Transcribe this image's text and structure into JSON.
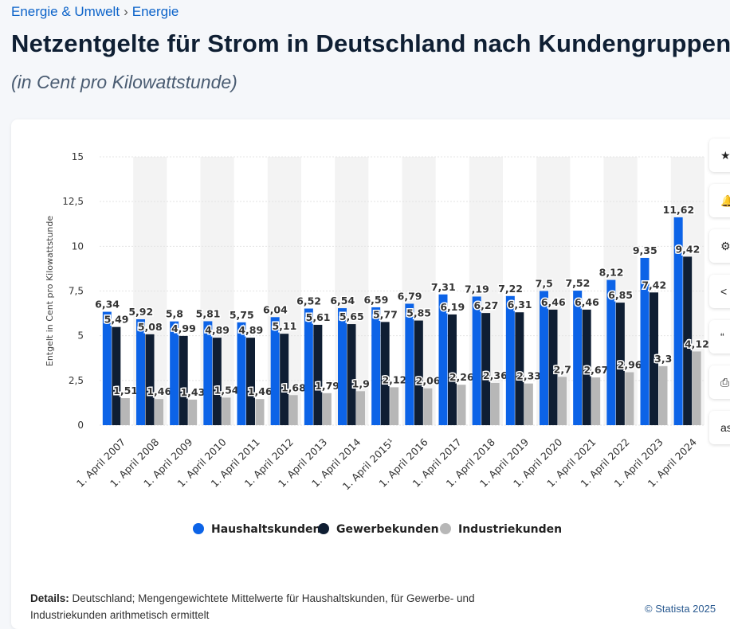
{
  "breadcrumb": {
    "item1": "Energie & Umwelt",
    "separator": "›",
    "item2": "Energie"
  },
  "title": "Netzentgelte für Strom in Deutschland nach Kundengruppen",
  "subtitle": "(in Cent pro Kilowattstunde)",
  "details": {
    "label": "Details:",
    "text": "Deutschland; Mengengewichtete Mittelwerte für Haushaltskunden, für Gewerbe- und Industriekunden arithmetisch ermittelt"
  },
  "copyright": "© Statista 2025",
  "tools": [
    {
      "icon": "star-icon",
      "glyph": "★"
    },
    {
      "icon": "bell-icon",
      "glyph": "🔔"
    },
    {
      "icon": "gear-icon",
      "glyph": "⚙"
    },
    {
      "icon": "share-icon",
      "glyph": "<"
    },
    {
      "icon": "quote-icon",
      "glyph": "“"
    },
    {
      "icon": "print-icon",
      "glyph": "⎙"
    },
    {
      "icon": "xls-icon",
      "glyph": "as"
    }
  ],
  "chart_data": {
    "type": "bar",
    "title": "",
    "xlabel": "",
    "ylabel": "Entgelt in Cent pro Kilowattstunde",
    "ylim": [
      0,
      15
    ],
    "yticks": [
      "0",
      "2,5",
      "5",
      "7,5",
      "10",
      "12,5",
      "15"
    ],
    "grid": true,
    "legend_position": "bottom",
    "categories": [
      "1. April 2007",
      "1. April 2008",
      "1. April 2009",
      "1. April 2010",
      "1. April 2011",
      "1. April 2012",
      "1. April 2013",
      "1. April 2014",
      "1. April 2015¹",
      "1. April 2016",
      "1. April 2017",
      "1. April 2018",
      "1. April 2019",
      "1. April 2020",
      "1. April 2021",
      "1. April 2022",
      "1. April 2023",
      "1. April 2024"
    ],
    "series": [
      {
        "name": "Haushaltskunden",
        "color": "#0c63e7",
        "values": [
          6.34,
          5.92,
          5.8,
          5.81,
          5.75,
          6.04,
          6.52,
          6.54,
          6.59,
          6.79,
          7.31,
          7.19,
          7.22,
          7.5,
          7.52,
          8.12,
          9.35,
          11.62
        ],
        "labels": [
          "6,34",
          "5,92",
          "5,8",
          "5,81",
          "5,75",
          "6,04",
          "6,52",
          "6,54",
          "6,59",
          "6,79",
          "7,31",
          "7,19",
          "7,22",
          "7,5",
          "7,52",
          "8,12",
          "9,35",
          "11,62"
        ]
      },
      {
        "name": "Gewerbekunden",
        "color": "#0f1e33",
        "values": [
          5.49,
          5.08,
          4.99,
          4.89,
          4.89,
          5.11,
          5.61,
          5.65,
          5.77,
          5.85,
          6.19,
          6.27,
          6.31,
          6.46,
          6.46,
          6.85,
          7.42,
          9.42
        ],
        "labels": [
          "5,49",
          "5,08",
          "4,99",
          "4,89",
          "4,89",
          "5,11",
          "5,61",
          "5,65",
          "5,77",
          "5,85",
          "6,19",
          "6,27",
          "6,31",
          "6,46",
          "6,46",
          "6,85",
          "7,42",
          "9,42"
        ]
      },
      {
        "name": "Industriekunden",
        "color": "#b7b7b7",
        "values": [
          1.51,
          1.46,
          1.43,
          1.54,
          1.46,
          1.68,
          1.79,
          1.9,
          2.12,
          2.06,
          2.26,
          2.36,
          2.33,
          2.7,
          2.67,
          2.96,
          3.3,
          4.12
        ],
        "labels": [
          "1,51",
          "1,46",
          "1,43",
          "1,54",
          "1,46",
          "1,68",
          "1,79",
          "1,9",
          "2,12",
          "2,06",
          "2,26",
          "2,36",
          "2,33",
          "2,7",
          "2,67",
          "2,96",
          "3,3",
          "4,12"
        ]
      }
    ]
  }
}
